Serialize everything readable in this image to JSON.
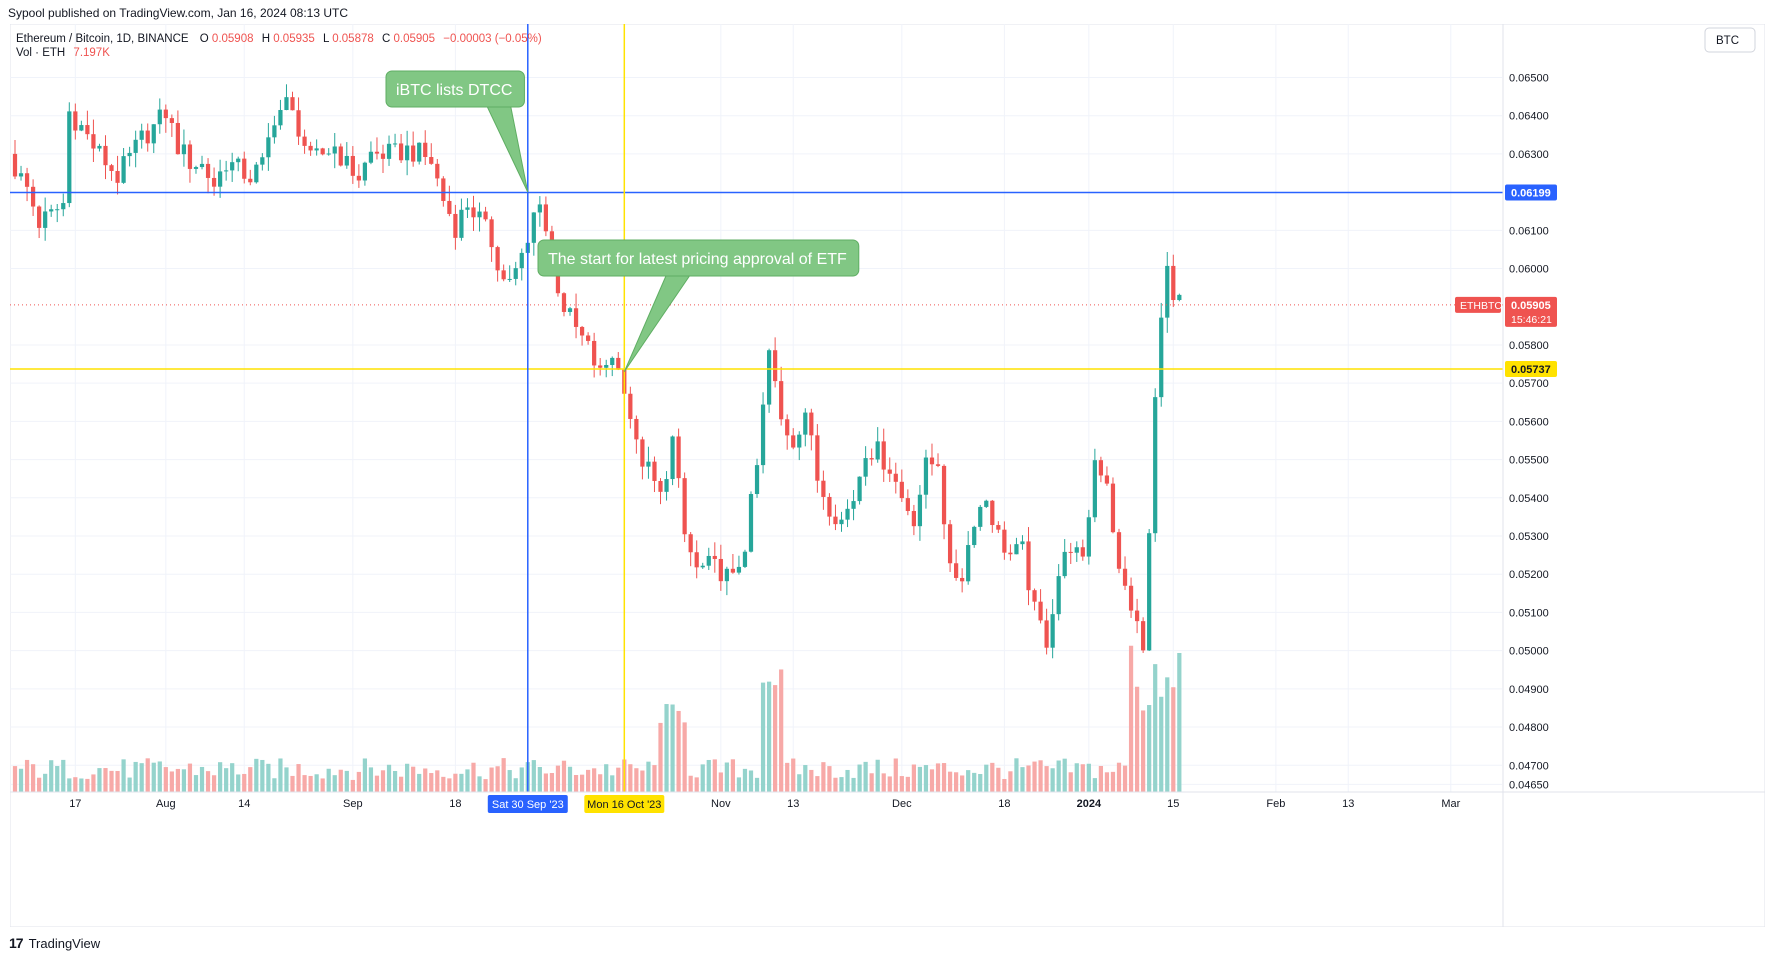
{
  "publication": {
    "text": "Sypool published on TradingView.com, Jan 16, 2024 08:13 UTC"
  },
  "legend": {
    "title": "Ethereum / Bitcoin, 1D, BINANCE",
    "open_label": "O",
    "open_value": "0.05908",
    "high_label": "H",
    "high_value": "0.05935",
    "low_label": "L",
    "low_value": "0.05878",
    "close_label": "C",
    "close_value": "0.05905",
    "change": "−0.00003 (−0.05%)",
    "vol_label": "Vol · ETH",
    "vol_value": "7.197K"
  },
  "currency_button": "BTC",
  "footer": {
    "logo": "17",
    "brand": "TradingView"
  },
  "colors": {
    "up": "#26a69a",
    "down": "#ef5350",
    "vol_up": "#94d3cc",
    "vol_down": "#f7a9a7",
    "blue_line": "#2962ff",
    "yellow_line": "#ffe200",
    "callout_fill": "#81c784",
    "callout_border": "#5fae63",
    "grid": "#f0f3fa"
  },
  "chart_data": {
    "type": "candlestick",
    "symbol": "ETHBTC",
    "ylim": [
      0.0463,
      0.0664
    ],
    "y_ticks": [
      0.0465,
      0.047,
      0.048,
      0.049,
      0.05,
      0.051,
      0.052,
      0.053,
      0.054,
      0.055,
      0.056,
      0.057,
      0.058,
      0.06,
      0.061,
      0.063,
      0.064,
      0.065
    ],
    "y_tick_labels": [
      "0.04650",
      "0.04700",
      "0.04800",
      "0.04900",
      "0.05000",
      "0.05100",
      "0.05200",
      "0.05300",
      "0.05400",
      "0.05500",
      "0.05600",
      "0.05700",
      "0.05800",
      "0.06000",
      "0.06100",
      "0.06300",
      "0.06400",
      "0.06500"
    ],
    "x_start_date": "2023-07-07",
    "x_end_date": "2024-03-07",
    "x_ticks": [
      {
        "date": "2023-07-17",
        "label": "17",
        "bold": false
      },
      {
        "date": "2023-08-01",
        "label": "Aug",
        "bold": false
      },
      {
        "date": "2023-08-14",
        "label": "14",
        "bold": false
      },
      {
        "date": "2023-09-01",
        "label": "Sep",
        "bold": false
      },
      {
        "date": "2023-09-18",
        "label": "18",
        "bold": false
      },
      {
        "date": "2023-11-01",
        "label": "Nov",
        "bold": false
      },
      {
        "date": "2023-11-13",
        "label": "13",
        "bold": false
      },
      {
        "date": "2023-12-01",
        "label": "Dec",
        "bold": false
      },
      {
        "date": "2023-12-18",
        "label": "18",
        "bold": false
      },
      {
        "date": "2024-01-01",
        "label": "2024",
        "bold": true
      },
      {
        "date": "2024-01-15",
        "label": "15",
        "bold": false
      },
      {
        "date": "2024-02-01",
        "label": "Feb",
        "bold": false
      },
      {
        "date": "2024-02-13",
        "label": "13",
        "bold": false
      },
      {
        "date": "2024-03-01",
        "label": "Mar",
        "bold": false
      }
    ],
    "closes": [
      [
        "2023-07-07",
        0.0626
      ],
      [
        "2023-07-09",
        0.0621
      ],
      [
        "2023-07-11",
        0.0612
      ],
      [
        "2023-07-13",
        0.0614
      ],
      [
        "2023-07-15",
        0.0617
      ],
      [
        "2023-07-16",
        0.0641
      ],
      [
        "2023-07-18",
        0.0637
      ],
      [
        "2023-07-20",
        0.0632
      ],
      [
        "2023-07-22",
        0.0628
      ],
      [
        "2023-07-24",
        0.0624
      ],
      [
        "2023-07-26",
        0.0629
      ],
      [
        "2023-07-28",
        0.0634
      ],
      [
        "2023-07-30",
        0.0637
      ],
      [
        "2023-08-01",
        0.0641
      ],
      [
        "2023-08-03",
        0.0632
      ],
      [
        "2023-08-05",
        0.0628
      ],
      [
        "2023-08-07",
        0.0627
      ],
      [
        "2023-08-09",
        0.0622
      ],
      [
        "2023-08-11",
        0.0628
      ],
      [
        "2023-08-13",
        0.0626
      ],
      [
        "2023-08-15",
        0.0624
      ],
      [
        "2023-08-17",
        0.0627
      ],
      [
        "2023-08-19",
        0.064
      ],
      [
        "2023-08-21",
        0.0643
      ],
      [
        "2023-08-23",
        0.0637
      ],
      [
        "2023-08-25",
        0.0628
      ],
      [
        "2023-08-27",
        0.063
      ],
      [
        "2023-08-29",
        0.0632
      ],
      [
        "2023-08-31",
        0.0627
      ],
      [
        "2023-09-02",
        0.0624
      ],
      [
        "2023-09-04",
        0.063
      ],
      [
        "2023-09-06",
        0.063
      ],
      [
        "2023-09-08",
        0.063
      ],
      [
        "2023-09-10",
        0.0631
      ],
      [
        "2023-09-12",
        0.063
      ],
      [
        "2023-09-14",
        0.0628
      ],
      [
        "2023-09-16",
        0.0618
      ],
      [
        "2023-09-18",
        0.0611
      ],
      [
        "2023-09-20",
        0.0617
      ],
      [
        "2023-09-22",
        0.0613
      ],
      [
        "2023-09-24",
        0.0607
      ],
      [
        "2023-09-26",
        0.0597
      ],
      [
        "2023-09-28",
        0.0599
      ],
      [
        "2023-09-30",
        0.0606
      ],
      [
        "2023-10-01",
        0.0614
      ],
      [
        "2023-10-02",
        0.0619
      ],
      [
        "2023-10-04",
        0.0601
      ],
      [
        "2023-10-06",
        0.059
      ],
      [
        "2023-10-08",
        0.0584
      ],
      [
        "2023-10-10",
        0.0579
      ],
      [
        "2023-10-12",
        0.0572
      ],
      [
        "2023-10-14",
        0.0578
      ],
      [
        "2023-10-15",
        0.0573
      ],
      [
        "2023-10-16",
        0.057
      ],
      [
        "2023-10-18",
        0.0553
      ],
      [
        "2023-10-20",
        0.0547
      ],
      [
        "2023-10-22",
        0.054
      ],
      [
        "2023-10-24",
        0.0555
      ],
      [
        "2023-10-26",
        0.053
      ],
      [
        "2023-10-28",
        0.0521
      ],
      [
        "2023-10-30",
        0.0522
      ],
      [
        "2023-11-01",
        0.0521
      ],
      [
        "2023-11-03",
        0.0518
      ],
      [
        "2023-11-05",
        0.0528
      ],
      [
        "2023-11-07",
        0.0548
      ],
      [
        "2023-11-09",
        0.0578
      ],
      [
        "2023-11-11",
        0.056
      ],
      [
        "2023-11-13",
        0.0555
      ],
      [
        "2023-11-15",
        0.0563
      ],
      [
        "2023-11-17",
        0.0545
      ],
      [
        "2023-11-19",
        0.0538
      ],
      [
        "2023-11-21",
        0.0534
      ],
      [
        "2023-11-23",
        0.054
      ],
      [
        "2023-11-25",
        0.0553
      ],
      [
        "2023-11-27",
        0.0552
      ],
      [
        "2023-11-29",
        0.0548
      ],
      [
        "2023-12-01",
        0.054
      ],
      [
        "2023-12-03",
        0.0535
      ],
      [
        "2023-12-05",
        0.0548
      ],
      [
        "2023-12-07",
        0.055
      ],
      [
        "2023-12-09",
        0.052
      ],
      [
        "2023-12-11",
        0.052
      ],
      [
        "2023-12-13",
        0.0535
      ],
      [
        "2023-12-15",
        0.054
      ],
      [
        "2023-12-17",
        0.053
      ],
      [
        "2023-12-19",
        0.0525
      ],
      [
        "2023-12-21",
        0.0526
      ],
      [
        "2023-12-23",
        0.051
      ],
      [
        "2023-12-25",
        0.0503
      ],
      [
        "2023-12-27",
        0.052
      ],
      [
        "2023-12-29",
        0.0528
      ],
      [
        "2023-12-31",
        0.0522
      ],
      [
        "2024-01-02",
        0.055
      ],
      [
        "2024-01-04",
        0.0545
      ],
      [
        "2024-01-06",
        0.052
      ],
      [
        "2024-01-08",
        0.0512
      ],
      [
        "2024-01-10",
        0.05
      ],
      [
        "2024-01-11",
        0.053
      ],
      [
        "2024-01-12",
        0.0565
      ],
      [
        "2024-01-13",
        0.059
      ],
      [
        "2024-01-14",
        0.0599
      ],
      [
        "2024-01-15",
        0.0591
      ],
      [
        "2024-01-16",
        0.05905
      ]
    ],
    "current_price": {
      "label": "ETHBTC",
      "value": "0.05905",
      "countdown": "15:46:21"
    },
    "levels": [
      {
        "price": 0.06199,
        "label": "0.06199",
        "color": "#2962ff"
      },
      {
        "price": 0.05737,
        "label": "0.05737",
        "color": "#ffe200"
      }
    ],
    "vertical_markers": [
      {
        "date": "2023-09-30",
        "label": "Sat 30 Sep '23",
        "color": "#2962ff"
      },
      {
        "date": "2023-10-16",
        "label": "Mon 16 Oct '23",
        "color": "#ffe200"
      }
    ],
    "annotations": [
      {
        "text": "iBTC lists DTCC",
        "target_date": "2023-09-30",
        "target_price": 0.062
      },
      {
        "text": "The start for latest pricing approval of ETF",
        "target_date": "2023-10-16",
        "target_price": 0.0573
      }
    ]
  }
}
